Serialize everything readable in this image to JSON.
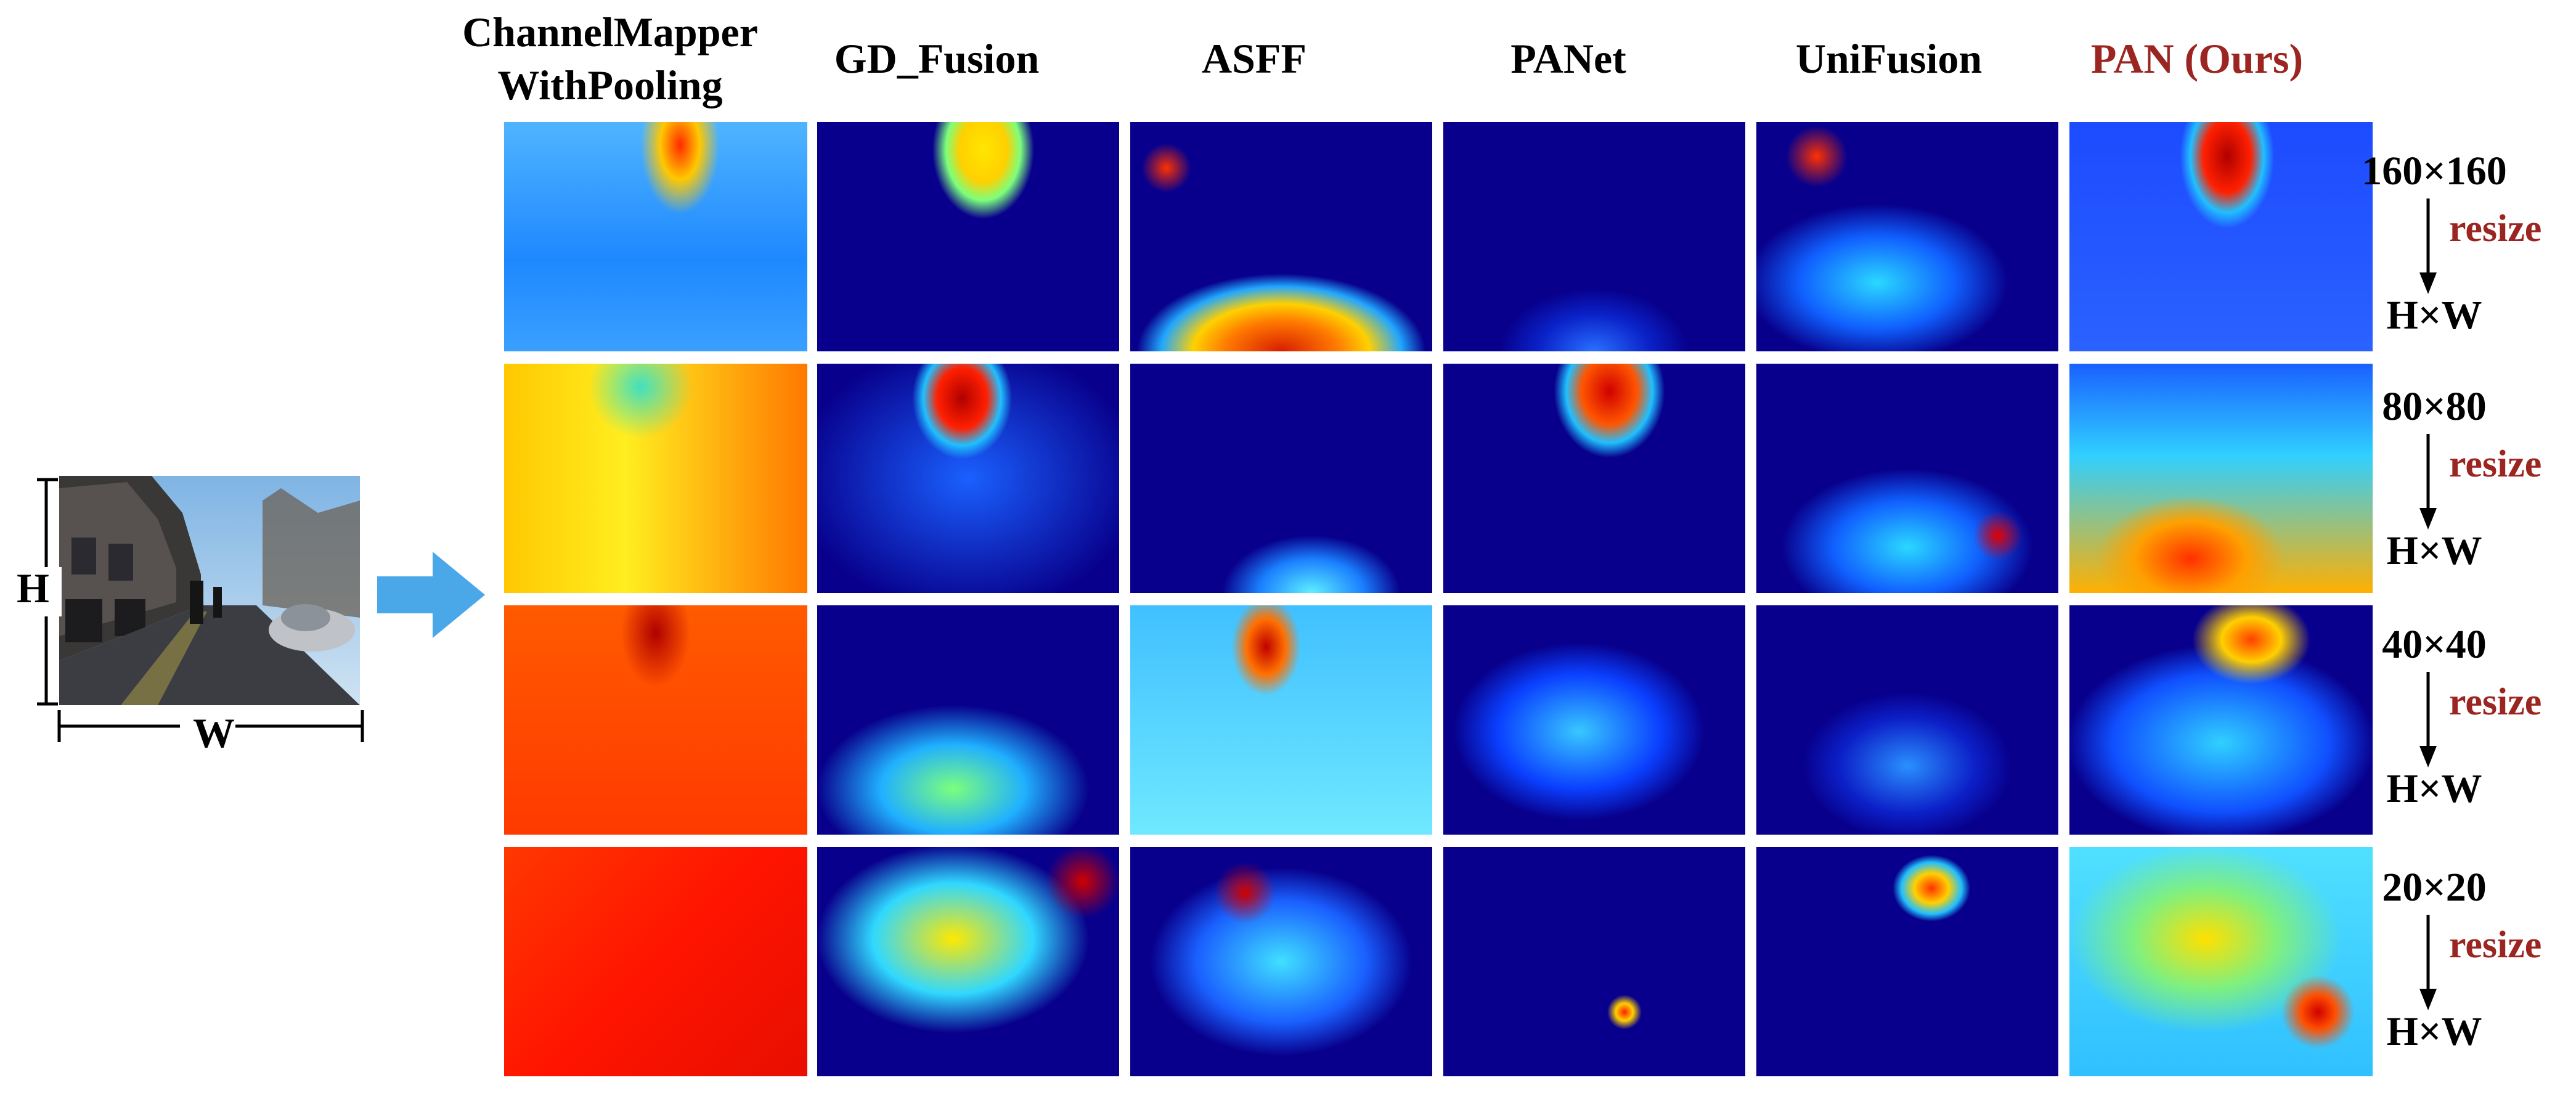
{
  "input": {
    "height_label": "H",
    "width_label": "W"
  },
  "columns": [
    {
      "line1": "ChannelMapper",
      "line2": "WithPooling",
      "highlight": false
    },
    {
      "line1": "GD_Fusion",
      "line2": "",
      "highlight": false
    },
    {
      "line1": "ASFF",
      "line2": "",
      "highlight": false
    },
    {
      "line1": "PANet",
      "line2": "",
      "highlight": false
    },
    {
      "line1": "UniFusion",
      "line2": "",
      "highlight": false
    },
    {
      "line1": "PAN (Ours)",
      "line2": "",
      "highlight": true
    }
  ],
  "rows": [
    {
      "size": "160×160",
      "resize": "resize",
      "target": "H×W"
    },
    {
      "size": "80×80",
      "resize": "resize",
      "target": "H×W"
    },
    {
      "size": "40×40",
      "resize": "resize",
      "target": "H×W"
    },
    {
      "size": "20×20",
      "resize": "resize",
      "target": "H×W"
    }
  ],
  "colors": {
    "heatmap_low": "#08008c",
    "heatmap_high": "#b00000",
    "highlight": "#9b2521",
    "arrow": "#4aa8e8"
  }
}
